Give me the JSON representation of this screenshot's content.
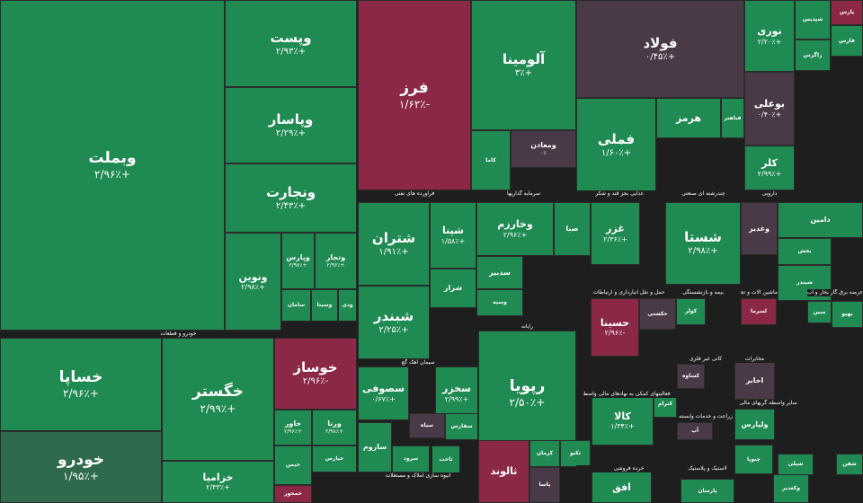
{
  "colors": {
    "positive": "#208a53",
    "positive_dark": "#1c7d4a",
    "positive_muted": "#2f6a4c",
    "negative": "#8a2846",
    "negative_dark": "#6e2a45",
    "neutral": "#4a3a48",
    "sector_bar": "#1e1e1e"
  },
  "sectors": [
    {
      "label": "خودرو و قطعات"
    },
    {
      "label": "فراورده های نفتی"
    },
    {
      "label": "سرمایه گذاریها"
    },
    {
      "label": "غذایی بجز قند و شکر"
    },
    {
      "label": "چندرشته ای صنعتی"
    },
    {
      "label": "دارویی"
    },
    {
      "label": "حمل و نقل انبارداری و ارتباطات"
    },
    {
      "label": "بیمه و بازنشستگی"
    },
    {
      "label": "ماشین آلات و تجهیزات"
    },
    {
      "label": "عرضه برق گاز بخار و آب گرم"
    },
    {
      "label": "رایانه"
    },
    {
      "label": "سیمان آهک گچ"
    },
    {
      "label": "فعالیتهای کمکی به نهادهای مالی واسط"
    },
    {
      "label": "انبوه سازی املاک و مستغلات"
    },
    {
      "label": "خرده فروشی"
    },
    {
      "label": "مخابرات"
    },
    {
      "label": "کانی غیر فلزی"
    },
    {
      "label": "سایر واسطه گریهای مالی"
    },
    {
      "label": "زراعت و خدمات وابسته"
    },
    {
      "label": "لاستیک و پلاستیک"
    }
  ],
  "tiles": [
    {
      "name": "وبملت",
      "change": "+۲/۹۶٪",
      "color": "g"
    },
    {
      "name": "وپست",
      "change": "+۲/۹۳٪",
      "color": "g"
    },
    {
      "name": "وپاسار",
      "change": "+۲/۲۹٪",
      "color": "g"
    },
    {
      "name": "ونجارت",
      "change": "+۲/۴۳٪",
      "color": "g"
    },
    {
      "name": "ونوین",
      "change": "+۲/۹۸٪",
      "color": "g"
    },
    {
      "name": "وپارس",
      "change": "+۲/۹۷٪",
      "color": "g"
    },
    {
      "name": "وتجار",
      "change": "+۲/۹۶٪",
      "color": "g"
    },
    {
      "name": "وسینا",
      "change": "",
      "color": "g"
    },
    {
      "name": "سامان",
      "change": "",
      "color": "g"
    },
    {
      "name": "ودی",
      "change": "",
      "color": "g"
    },
    {
      "name": "خساپا",
      "change": "+۲/۹۶٪",
      "color": "g"
    },
    {
      "name": "خودرو",
      "change": "+۱/۹۵٪",
      "color": "g3"
    },
    {
      "name": "خگستر",
      "change": "+۲/۹۹٪",
      "color": "g"
    },
    {
      "name": "خزامیا",
      "change": "+۲/۳۳٪",
      "color": "g"
    },
    {
      "name": "خوساز",
      "change": "-۲/۹۶٪",
      "color": "r"
    },
    {
      "name": "خاور",
      "change": "+۲/۹۶٪",
      "color": "g"
    },
    {
      "name": "ورنا",
      "change": "+۲/۹۸٪",
      "color": "g"
    },
    {
      "name": "خپارس",
      "change": "",
      "color": "g"
    },
    {
      "name": "خیمن",
      "change": "",
      "color": "g"
    },
    {
      "name": "خمحور",
      "change": "",
      "color": "r"
    },
    {
      "name": "فرز",
      "change": "-۱/۶۲٪",
      "color": "r"
    },
    {
      "name": "آلومینا",
      "change": "+۳٪",
      "color": "g"
    },
    {
      "name": "ومعادن",
      "change": "۰٪",
      "color": "n"
    },
    {
      "name": "کاما",
      "change": "",
      "color": "g"
    },
    {
      "name": "فولاد",
      "change": "+۰/۴۵٪",
      "color": "n"
    },
    {
      "name": "فملی",
      "change": "+۱/۶۰٪",
      "color": "g"
    },
    {
      "name": "نوری",
      "change": "+۲/۲۰٪",
      "color": "g"
    },
    {
      "name": "بوعلی",
      "change": "+۰/۴۰٪",
      "color": "n"
    },
    {
      "name": "کلر",
      "change": "+۲/۹۹٪",
      "color": "g"
    },
    {
      "name": "شپدیس",
      "change": "",
      "color": "g"
    },
    {
      "name": "پارس",
      "change": "",
      "color": "r"
    },
    {
      "name": "فارس",
      "change": "",
      "color": "g"
    },
    {
      "name": "زاگرس",
      "change": "",
      "color": "g"
    },
    {
      "name": "شتران",
      "change": "+۱/۹۱٪",
      "color": "g"
    },
    {
      "name": "شپنا",
      "change": "+۱/۵۸٪",
      "color": "g"
    },
    {
      "name": "شبندر",
      "change": "+۲/۲۵٪",
      "color": "g"
    },
    {
      "name": "شراز",
      "change": "",
      "color": "g"
    },
    {
      "name": "وخارزم",
      "change": "+۲/۹۶٪",
      "color": "g"
    },
    {
      "name": "صبا",
      "change": "",
      "color": "g"
    },
    {
      "name": "غزر",
      "change": "+۲/۳۶٪",
      "color": "g"
    },
    {
      "name": "شستا",
      "change": "+۲/۹۸٪",
      "color": "g"
    },
    {
      "name": "وغدیر",
      "change": "",
      "color": "n"
    },
    {
      "name": "دامین",
      "change": "",
      "color": "g"
    },
    {
      "name": "بخش",
      "change": "",
      "color": "g"
    },
    {
      "name": "سدبیر",
      "change": "",
      "color": "g"
    },
    {
      "name": "وسپه",
      "change": "",
      "color": "g"
    },
    {
      "name": "حسینا",
      "change": "-۲/۹۶٪",
      "color": "r"
    },
    {
      "name": "حکشتی",
      "change": "",
      "color": "n"
    },
    {
      "name": "کولر",
      "change": "",
      "color": "g"
    },
    {
      "name": "لسرما",
      "change": "",
      "color": "r"
    },
    {
      "name": "شبندر",
      "change": "",
      "color": "g"
    },
    {
      "name": "مبین",
      "change": "",
      "color": "g"
    },
    {
      "name": "بهپو",
      "change": "",
      "color": "g"
    },
    {
      "name": "رپویا",
      "change": "+۲/۵۰٪",
      "color": "g"
    },
    {
      "name": "سصوفی",
      "change": "+۰/۶۷٪",
      "color": "g"
    },
    {
      "name": "سخزر",
      "change": "+۲/۹۹٪",
      "color": "g"
    },
    {
      "name": "ساروم",
      "change": "",
      "color": "g"
    },
    {
      "name": "سیاه",
      "change": "",
      "color": "n"
    },
    {
      "name": "سفارس",
      "change": "",
      "color": "g"
    },
    {
      "name": "سرود",
      "change": "",
      "color": "g"
    },
    {
      "name": "ثاخت",
      "change": "",
      "color": "g"
    },
    {
      "name": "ثالوند",
      "change": "",
      "color": "r"
    },
    {
      "name": "افق",
      "change": "",
      "color": "g"
    },
    {
      "name": "کالا",
      "change": "+۱/۳۴٪",
      "color": "g"
    },
    {
      "name": "آپ",
      "change": "",
      "color": "n"
    },
    {
      "name": "اخابر",
      "change": "",
      "color": "n"
    },
    {
      "name": "ولپارس",
      "change": "",
      "color": "g"
    },
    {
      "name": "چنوپا",
      "change": "",
      "color": "g"
    },
    {
      "name": "کساوه",
      "change": "",
      "color": "n"
    },
    {
      "name": "وکغدیر",
      "change": "",
      "color": "g"
    },
    {
      "name": "پارسان",
      "change": "",
      "color": "g"
    },
    {
      "name": "کرمان",
      "change": "",
      "color": "g"
    },
    {
      "name": "تکنو",
      "change": "",
      "color": "g"
    },
    {
      "name": "پاسا",
      "change": "",
      "color": "n"
    },
    {
      "name": "کترام",
      "change": "",
      "color": "g"
    },
    {
      "name": "شپلی",
      "change": "",
      "color": "g"
    },
    {
      "name": "شفن",
      "change": "",
      "color": "g"
    },
    {
      "name": "هرمز",
      "change": "",
      "color": "g"
    },
    {
      "name": "فباهنر",
      "change": "",
      "color": "g"
    }
  ]
}
